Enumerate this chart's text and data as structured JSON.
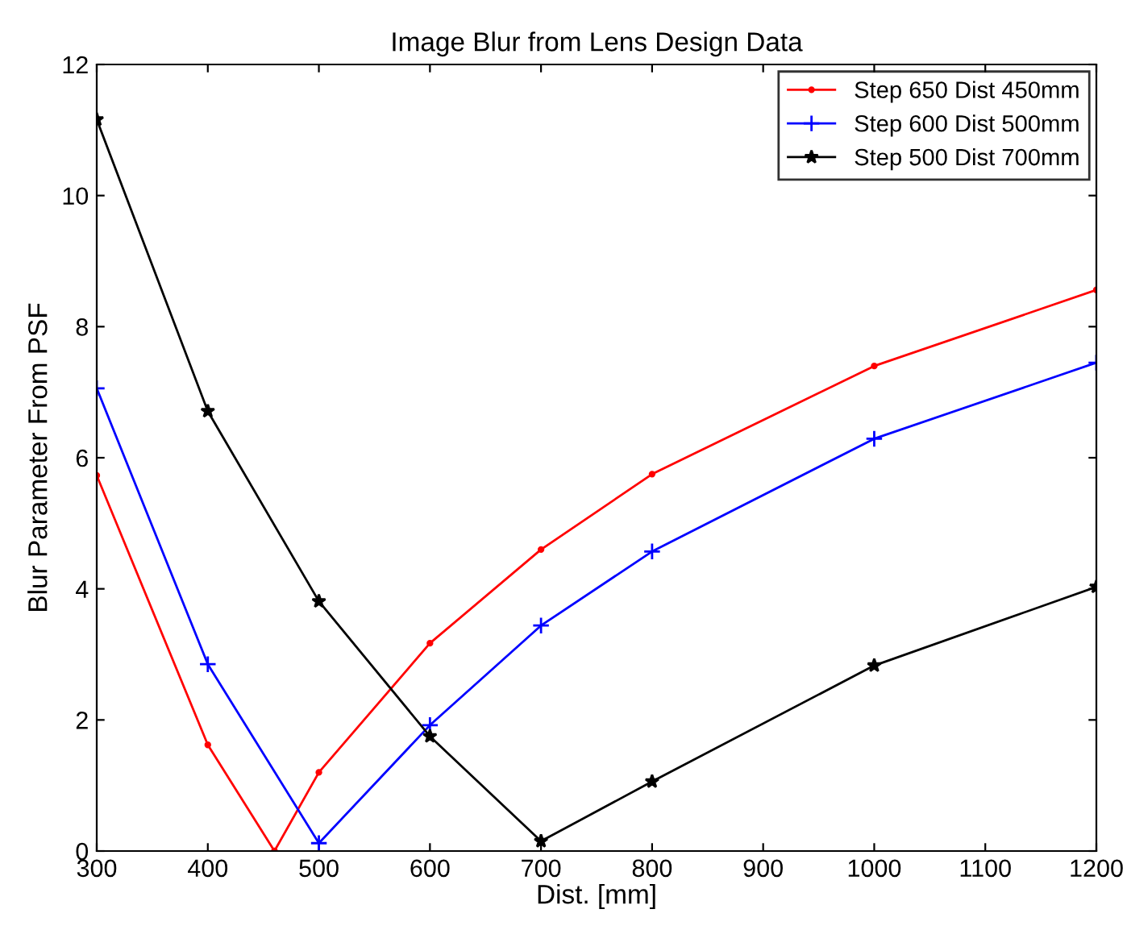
{
  "chart_data": {
    "type": "line",
    "title": "Image Blur from Lens Design Data",
    "xlabel": "Dist. [mm]",
    "ylabel": "Blur Parameter From PSF",
    "xlim": [
      300,
      1200
    ],
    "xticks": [
      300,
      400,
      500,
      600,
      700,
      800,
      900,
      1000,
      1100,
      1200
    ],
    "ylim": [
      0,
      12
    ],
    "yticks": [
      0,
      2,
      4,
      6,
      8,
      10,
      12
    ],
    "grid": false,
    "legend": "top right",
    "line_style": "solid",
    "series": [
      {
        "name": "Step 650 Dist 450mm",
        "color": "#ff0000",
        "marker": "circle",
        "x": [
          300,
          400,
          460,
          500,
          600,
          700,
          800,
          1000,
          1200
        ],
        "values": [
          5.73,
          1.62,
          0,
          1.2,
          3.17,
          4.6,
          5.75,
          7.4,
          8.56
        ]
      },
      {
        "name": "Step 600 Dist 500mm",
        "color": "#0000ff",
        "marker": "cross",
        "x": [
          300,
          400,
          500,
          600,
          700,
          800,
          1000,
          1200
        ],
        "values": [
          7.06,
          2.85,
          0.12,
          1.92,
          3.44,
          4.57,
          6.29,
          7.45
        ]
      },
      {
        "name": "Step 500 Dist 700mm",
        "color": "#000000",
        "marker": "star",
        "x": [
          300,
          400,
          500,
          600,
          700,
          800,
          1000,
          1200
        ],
        "values": [
          11.16,
          6.71,
          3.81,
          1.75,
          0.15,
          1.06,
          2.83,
          4.03
        ]
      }
    ]
  }
}
